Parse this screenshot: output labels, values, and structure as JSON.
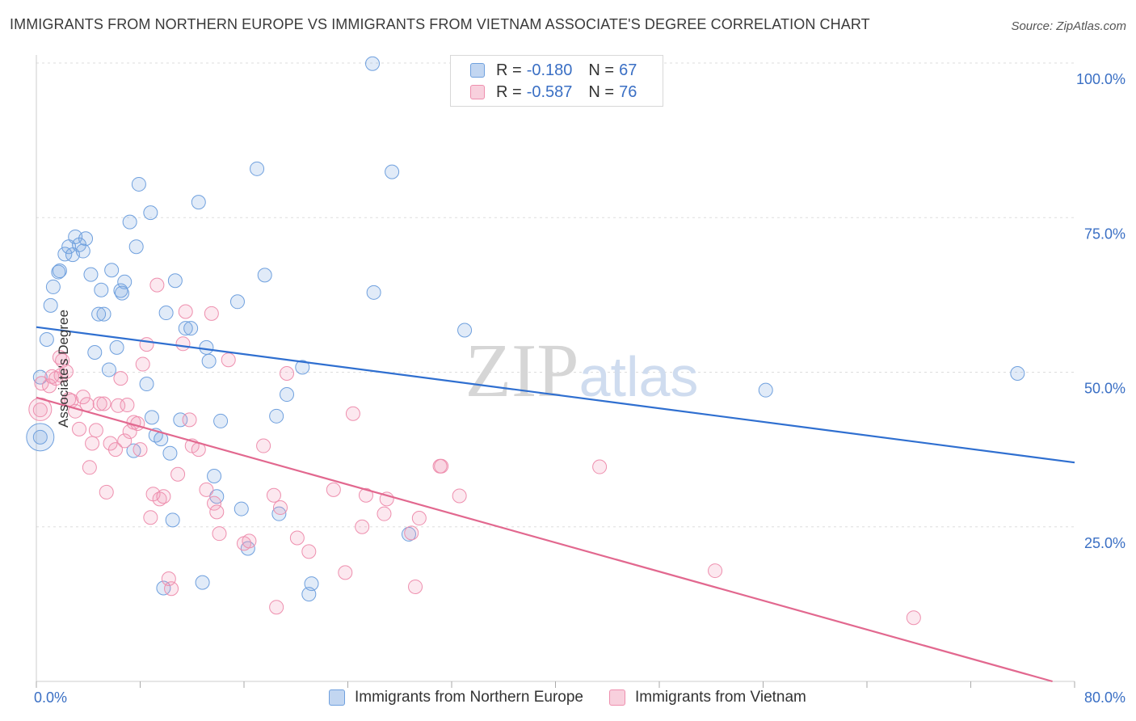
{
  "title": "IMMIGRANTS FROM NORTHERN EUROPE VS IMMIGRANTS FROM VIETNAM ASSOCIATE'S DEGREE CORRELATION CHART",
  "source": "Source: ZipAtlas.com",
  "watermark": "ZIPatlas",
  "colors": {
    "blue": "#6fa0de",
    "blue_fill": "rgba(120,165,225,0.22)",
    "blue_line": "#2f6fd0",
    "pink": "#ee8fae",
    "pink_fill": "rgba(240,150,180,0.22)",
    "pink_line": "#e2688f",
    "axis_text": "#3a6fc4"
  },
  "legend": {
    "rows": [
      {
        "r_label": "R =",
        "r_value": "-0.180",
        "n_label": "N =",
        "n_value": "67"
      },
      {
        "r_label": "R =",
        "r_value": "-0.587",
        "n_label": "N =",
        "n_value": "76"
      }
    ]
  },
  "bottom_legend": [
    "Immigrants from Northern Europe",
    "Immigrants from Vietnam"
  ],
  "chart_data": {
    "type": "scatter",
    "ylabel": "Associate's Degree",
    "xlim": [
      0,
      80
    ],
    "ylim": [
      0,
      100
    ],
    "x_tick_labels": [
      "0.0%",
      "80.0%"
    ],
    "y_tick_labels": [
      "100.0%",
      "75.0%",
      "50.0%",
      "25.0%"
    ],
    "y_ticks": [
      100,
      75,
      50,
      25
    ],
    "grid": true,
    "series": [
      {
        "name": "Immigrants from Northern Europe",
        "color": "blue",
        "trend": [
          [
            0,
            57.3
          ],
          [
            80,
            35.4
          ]
        ],
        "points": [
          [
            0.3,
            39.5
          ],
          [
            0.3,
            49.2
          ],
          [
            0.8,
            55.3
          ],
          [
            1.1,
            60.8
          ],
          [
            1.3,
            63.8
          ],
          [
            1.7,
            66.2
          ],
          [
            1.8,
            66.4
          ],
          [
            2.2,
            69.1
          ],
          [
            2.5,
            70.3
          ],
          [
            2.8,
            69.0
          ],
          [
            3.0,
            71.9
          ],
          [
            3.3,
            70.6
          ],
          [
            3.6,
            69.6
          ],
          [
            3.8,
            71.6
          ],
          [
            4.2,
            65.8
          ],
          [
            4.5,
            53.2
          ],
          [
            4.8,
            59.4
          ],
          [
            5.0,
            63.3
          ],
          [
            5.2,
            59.4
          ],
          [
            5.6,
            50.4
          ],
          [
            5.8,
            66.5
          ],
          [
            6.2,
            54.0
          ],
          [
            6.5,
            63.2
          ],
          [
            6.6,
            62.8
          ],
          [
            6.8,
            64.6
          ],
          [
            7.2,
            74.3
          ],
          [
            7.5,
            37.3
          ],
          [
            7.7,
            70.3
          ],
          [
            7.9,
            80.4
          ],
          [
            8.5,
            48.1
          ],
          [
            8.8,
            75.8
          ],
          [
            8.9,
            42.7
          ],
          [
            9.2,
            39.8
          ],
          [
            9.6,
            39.2
          ],
          [
            9.8,
            15.1
          ],
          [
            10.0,
            59.6
          ],
          [
            10.3,
            36.9
          ],
          [
            10.5,
            26.1
          ],
          [
            10.7,
            64.8
          ],
          [
            11.1,
            42.3
          ],
          [
            11.5,
            57.1
          ],
          [
            11.9,
            57.1
          ],
          [
            12.5,
            77.5
          ],
          [
            12.8,
            16.0
          ],
          [
            13.1,
            54.0
          ],
          [
            13.3,
            51.8
          ],
          [
            13.7,
            33.2
          ],
          [
            13.9,
            29.9
          ],
          [
            14.2,
            42.1
          ],
          [
            15.5,
            61.4
          ],
          [
            15.8,
            27.9
          ],
          [
            16.3,
            21.5
          ],
          [
            17.0,
            82.9
          ],
          [
            17.6,
            65.7
          ],
          [
            18.5,
            42.9
          ],
          [
            18.7,
            27.1
          ],
          [
            19.3,
            46.4
          ],
          [
            20.5,
            50.8
          ],
          [
            21.0,
            14.1
          ],
          [
            21.2,
            15.8
          ],
          [
            25.9,
            99.9
          ],
          [
            26.0,
            62.9
          ],
          [
            27.4,
            82.4
          ],
          [
            28.7,
            23.8
          ],
          [
            33.0,
            56.8
          ],
          [
            56.2,
            47.1
          ],
          [
            75.6,
            49.8
          ]
        ]
      },
      {
        "name": "Immigrants from Vietnam",
        "color": "pink",
        "trend": [
          [
            0,
            45.9
          ],
          [
            80,
            -1.0
          ]
        ],
        "points": [
          [
            0.3,
            43.9
          ],
          [
            0.4,
            48.2
          ],
          [
            1.0,
            47.8
          ],
          [
            1.2,
            49.3
          ],
          [
            1.5,
            49.0
          ],
          [
            1.8,
            52.4
          ],
          [
            1.9,
            49.5
          ],
          [
            2.0,
            51.9
          ],
          [
            2.3,
            50.1
          ],
          [
            2.5,
            45.6
          ],
          [
            2.7,
            45.4
          ],
          [
            3.0,
            43.7
          ],
          [
            3.3,
            40.8
          ],
          [
            3.6,
            46.0
          ],
          [
            3.9,
            44.8
          ],
          [
            4.1,
            34.6
          ],
          [
            4.3,
            38.5
          ],
          [
            4.6,
            40.6
          ],
          [
            4.9,
            44.9
          ],
          [
            5.2,
            44.9
          ],
          [
            5.4,
            30.6
          ],
          [
            5.7,
            38.5
          ],
          [
            6.1,
            37.5
          ],
          [
            6.3,
            44.6
          ],
          [
            6.5,
            49.0
          ],
          [
            6.8,
            38.9
          ],
          [
            7.0,
            44.7
          ],
          [
            7.2,
            40.4
          ],
          [
            7.5,
            41.9
          ],
          [
            7.8,
            41.7
          ],
          [
            8.0,
            37.5
          ],
          [
            8.2,
            51.3
          ],
          [
            8.5,
            54.5
          ],
          [
            8.8,
            26.5
          ],
          [
            9.0,
            30.3
          ],
          [
            9.3,
            64.1
          ],
          [
            9.5,
            29.5
          ],
          [
            9.8,
            29.9
          ],
          [
            10.2,
            16.6
          ],
          [
            10.4,
            15.0
          ],
          [
            10.9,
            33.5
          ],
          [
            11.3,
            54.6
          ],
          [
            11.5,
            59.8
          ],
          [
            11.8,
            42.3
          ],
          [
            12.0,
            38.1
          ],
          [
            12.5,
            37.5
          ],
          [
            13.1,
            31.0
          ],
          [
            13.5,
            59.5
          ],
          [
            13.7,
            28.8
          ],
          [
            13.9,
            27.4
          ],
          [
            14.1,
            23.9
          ],
          [
            14.8,
            52.0
          ],
          [
            16.0,
            22.3
          ],
          [
            16.4,
            22.7
          ],
          [
            17.5,
            38.1
          ],
          [
            18.3,
            30.1
          ],
          [
            18.5,
            12.0
          ],
          [
            18.8,
            28.1
          ],
          [
            19.3,
            49.8
          ],
          [
            20.1,
            23.2
          ],
          [
            21.0,
            21.0
          ],
          [
            22.9,
            31.0
          ],
          [
            23.8,
            17.6
          ],
          [
            24.4,
            43.3
          ],
          [
            25.1,
            25.0
          ],
          [
            25.4,
            30.1
          ],
          [
            26.8,
            27.1
          ],
          [
            27.0,
            29.5
          ],
          [
            28.9,
            24.0
          ],
          [
            29.2,
            15.3
          ],
          [
            29.5,
            26.4
          ],
          [
            31.1,
            34.8
          ],
          [
            31.2,
            34.8
          ],
          [
            32.6,
            30.0
          ],
          [
            43.4,
            34.7
          ],
          [
            52.3,
            17.9
          ],
          [
            67.6,
            10.3
          ]
        ]
      }
    ]
  }
}
